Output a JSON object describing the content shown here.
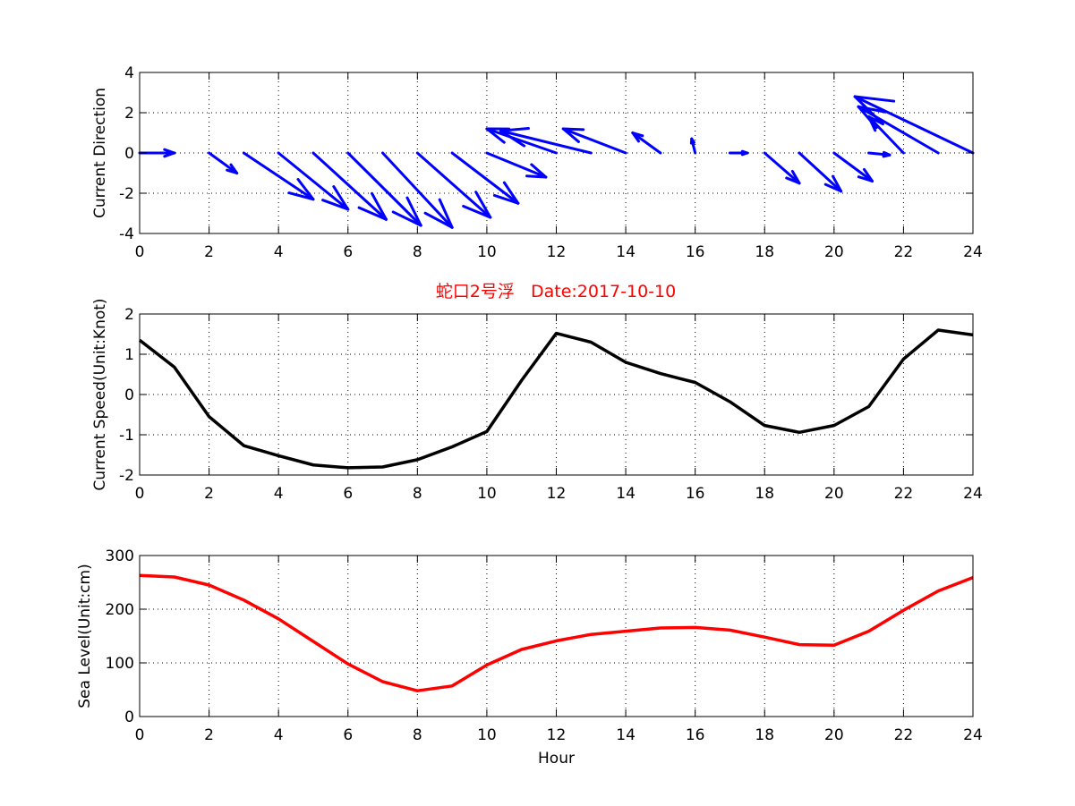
{
  "colors": {
    "direction_arrows": "#0000ff",
    "speed_line": "#000000",
    "sea_level_line": "#ff0000",
    "title": "#ff0000"
  },
  "title": "蛇口2号浮   Date:2017-10-10",
  "chart_data": [
    {
      "type": "quiver",
      "ylabel": "Current Direction",
      "xlim": [
        0,
        24
      ],
      "ylim": [
        -4,
        4
      ],
      "xticks": [
        0,
        2,
        4,
        6,
        8,
        10,
        12,
        14,
        16,
        18,
        20,
        22,
        24
      ],
      "yticks": [
        -4,
        -2,
        0,
        2,
        4
      ],
      "grid": true,
      "vectors": [
        {
          "x": 0,
          "u": 1.0,
          "v": -0.0
        },
        {
          "x": 2,
          "u": 0.8,
          "v": -1.0
        },
        {
          "x": 3,
          "u": 2.0,
          "v": -2.3
        },
        {
          "x": 4,
          "u": 2.0,
          "v": -2.8
        },
        {
          "x": 5,
          "u": 2.1,
          "v": -3.3
        },
        {
          "x": 6,
          "u": 2.1,
          "v": -3.6
        },
        {
          "x": 7,
          "u": 2.0,
          "v": -3.7
        },
        {
          "x": 8,
          "u": 2.1,
          "v": -3.2
        },
        {
          "x": 9,
          "u": 1.9,
          "v": -2.5
        },
        {
          "x": 10,
          "u": 1.7,
          "v": -1.2
        },
        {
          "x": 12,
          "u": -2.0,
          "v": 1.2
        },
        {
          "x": 13,
          "u": -2.6,
          "v": 1.1
        },
        {
          "x": 14,
          "u": -1.8,
          "v": 1.2
        },
        {
          "x": 15,
          "u": -0.8,
          "v": 1.0
        },
        {
          "x": 16,
          "u": -0.1,
          "v": 0.7
        },
        {
          "x": 17,
          "u": 0.5,
          "v": 0.0
        },
        {
          "x": 18,
          "u": 1.0,
          "v": -1.5
        },
        {
          "x": 19,
          "u": 1.2,
          "v": -1.9
        },
        {
          "x": 20,
          "u": 1.1,
          "v": -1.4
        },
        {
          "x": 21,
          "u": 0.6,
          "v": -0.1
        },
        {
          "x": 22,
          "u": -1.0,
          "v": 1.8
        },
        {
          "x": 23,
          "u": -2.3,
          "v": 2.3
        },
        {
          "x": 24,
          "u": -3.4,
          "v": 2.8
        }
      ]
    },
    {
      "type": "line",
      "ylabel": "Current Speed(Unit:Knot)",
      "xlim": [
        0,
        24
      ],
      "ylim": [
        -2,
        2
      ],
      "xticks": [
        0,
        2,
        4,
        6,
        8,
        10,
        12,
        14,
        16,
        18,
        20,
        22,
        24
      ],
      "yticks": [
        -2,
        -1,
        0,
        1,
        2
      ],
      "grid": true,
      "x": [
        0,
        1,
        2,
        3,
        4,
        5,
        6,
        7,
        8,
        9,
        10,
        11,
        12,
        13,
        14,
        15,
        16,
        17,
        18,
        19,
        20,
        21,
        22,
        23,
        24
      ],
      "y": [
        1.35,
        0.68,
        -0.55,
        -1.27,
        -1.52,
        -1.75,
        -1.82,
        -1.8,
        -1.62,
        -1.3,
        -0.92,
        0.35,
        1.52,
        1.3,
        0.8,
        0.52,
        0.3,
        -0.18,
        -0.77,
        -0.94,
        -0.77,
        -0.3,
        0.88,
        1.6,
        1.48
      ]
    },
    {
      "type": "line",
      "ylabel": "Sea Level(Unit:cm)",
      "xlabel": "Hour",
      "xlim": [
        0,
        24
      ],
      "ylim": [
        0,
        300
      ],
      "xticks": [
        0,
        2,
        4,
        6,
        8,
        10,
        12,
        14,
        16,
        18,
        20,
        22,
        24
      ],
      "yticks": [
        0,
        100,
        200,
        300
      ],
      "grid": true,
      "x": [
        0,
        1,
        2,
        3,
        4,
        5,
        6,
        7,
        8,
        9,
        10,
        11,
        12,
        13,
        14,
        15,
        16,
        17,
        18,
        19,
        20,
        21,
        22,
        23,
        24
      ],
      "y": [
        263,
        260,
        245,
        217,
        182,
        140,
        98,
        65,
        48,
        57,
        96,
        125,
        141,
        153,
        159,
        165,
        166,
        161,
        148,
        134,
        133,
        159,
        198,
        234,
        259
      ]
    }
  ]
}
